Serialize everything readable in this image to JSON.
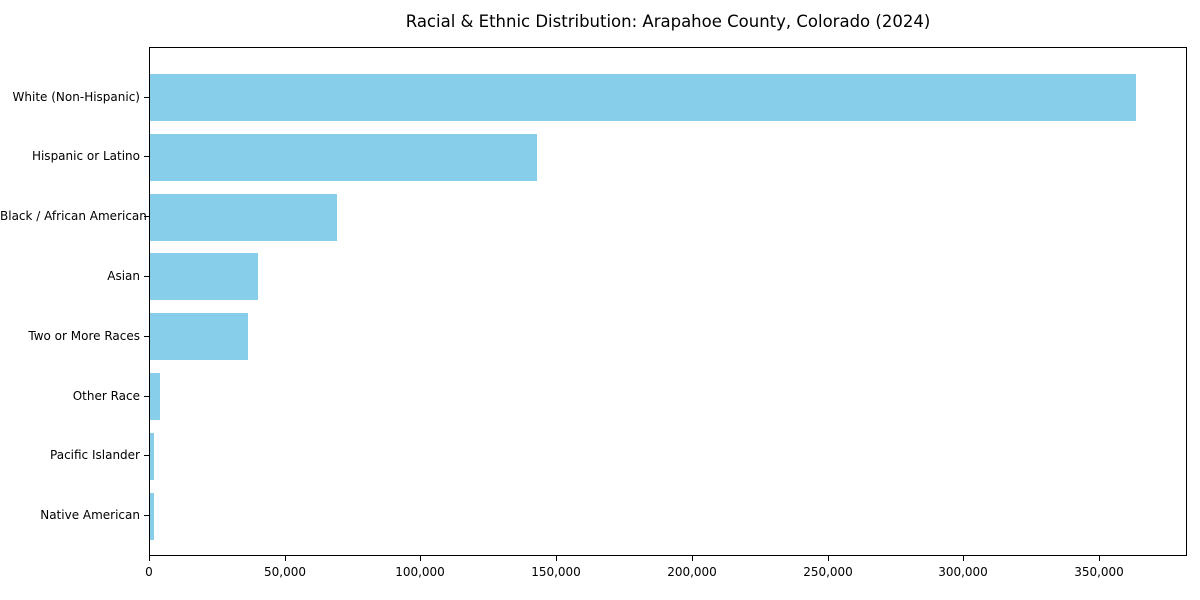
{
  "figure": {
    "background_color": "#ffffff"
  },
  "chart_data": {
    "type": "bar",
    "orientation": "horizontal",
    "title": "Racial & Ethnic Distribution: Arapahoe County, Colorado (2024)",
    "categories": [
      "White (Non-Hispanic)",
      "Hispanic or Latino",
      "Black / African American",
      "Asian",
      "Two or More Races",
      "Other Race",
      "Pacific Islander",
      "Native American"
    ],
    "values": [
      364000,
      143000,
      69000,
      40000,
      36000,
      3700,
      1400,
      1600
    ],
    "xlabel": "",
    "ylabel": "",
    "xlim": [
      0,
      382400
    ],
    "xticks": [
      0,
      50000,
      100000,
      150000,
      200000,
      250000,
      300000,
      350000
    ],
    "xtick_labels": [
      "0",
      "50,000",
      "100,000",
      "150,000",
      "200,000",
      "250,000",
      "300,000",
      "350,000"
    ],
    "bar_color": "#87CEEB",
    "axis_color": "#000000",
    "grid": false,
    "legend": null
  }
}
